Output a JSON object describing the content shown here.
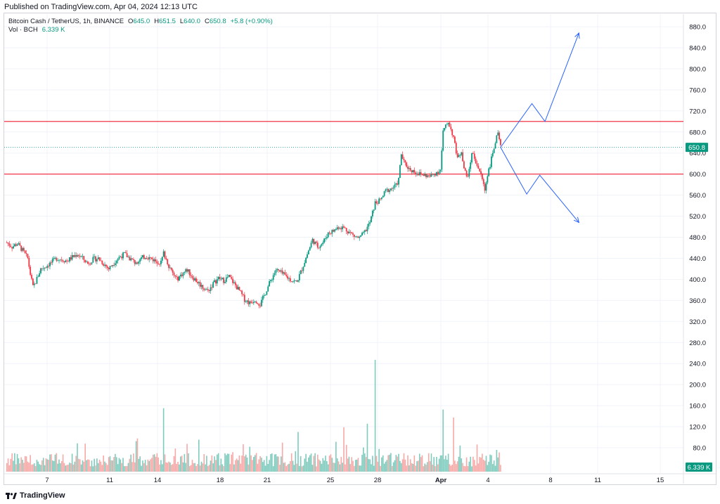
{
  "header": {
    "published": "Published on TradingView.com, Apr 04, 2024 12:13 UTC"
  },
  "legend": {
    "symbol": "Bitcoin Cash / TetherUS, 1h, BINANCE",
    "open_label": "O",
    "open": "645.0",
    "high_label": "H",
    "high": "651.5",
    "low_label": "L",
    "low": "640.0",
    "close_label": "C",
    "close": "650.8",
    "change": "+5.8 (+0.90%)",
    "vol_label": "Vol · BCH",
    "vol_value": "6.339 K"
  },
  "footer": {
    "brand": "TradingView"
  },
  "colors": {
    "up": "#089981",
    "down": "#f23645",
    "up_vol": "#7fcbbe",
    "down_vol": "#f7a9a7",
    "resistance": "#f23645",
    "projection": "#2962ff",
    "grid": "#f0f3fa",
    "price_tag": "#089981"
  },
  "chart_data": {
    "type": "candlestick",
    "x_axis_labels": [
      "7",
      "11",
      "14",
      "18",
      "21",
      "25",
      "28",
      "Apr",
      "4",
      "8",
      "11",
      "15"
    ],
    "y_axis_labels": [
      "880.0",
      "840.0",
      "800.0",
      "760.0",
      "720.0",
      "680.0",
      "640.0",
      "600.0",
      "560.0",
      "520.0",
      "480.0",
      "440.0",
      "400.0",
      "360.0",
      "320.0",
      "280.0",
      "240.0",
      "200.0",
      "160.0",
      "120.0",
      "80.0"
    ],
    "ylim": [
      280,
      895
    ],
    "last_price": 650.8,
    "last_price_label": "650.8",
    "volume_label": "6.339 K",
    "horizontal_levels": [
      700,
      600
    ],
    "close_path": [
      {
        "x": 1,
        "y": 470
      },
      {
        "x": 3,
        "y": 462
      },
      {
        "x": 5,
        "y": 468
      },
      {
        "x": 7,
        "y": 455
      },
      {
        "x": 9,
        "y": 440
      },
      {
        "x": 10,
        "y": 410
      },
      {
        "x": 11,
        "y": 385
      },
      {
        "x": 12,
        "y": 395
      },
      {
        "x": 14,
        "y": 420
      },
      {
        "x": 16,
        "y": 425
      },
      {
        "x": 18,
        "y": 432
      },
      {
        "x": 20,
        "y": 440
      },
      {
        "x": 22,
        "y": 438
      },
      {
        "x": 24,
        "y": 435
      },
      {
        "x": 26,
        "y": 442
      },
      {
        "x": 28,
        "y": 448
      },
      {
        "x": 30,
        "y": 440
      },
      {
        "x": 32,
        "y": 430
      },
      {
        "x": 34,
        "y": 438
      },
      {
        "x": 36,
        "y": 440
      },
      {
        "x": 38,
        "y": 430
      },
      {
        "x": 40,
        "y": 420
      },
      {
        "x": 42,
        "y": 432
      },
      {
        "x": 44,
        "y": 442
      },
      {
        "x": 46,
        "y": 448
      },
      {
        "x": 48,
        "y": 440
      },
      {
        "x": 50,
        "y": 432
      },
      {
        "x": 52,
        "y": 438
      },
      {
        "x": 54,
        "y": 444
      },
      {
        "x": 56,
        "y": 440
      },
      {
        "x": 58,
        "y": 435
      },
      {
        "x": 60,
        "y": 432
      },
      {
        "x": 61,
        "y": 450
      },
      {
        "x": 62,
        "y": 438
      },
      {
        "x": 64,
        "y": 415
      },
      {
        "x": 66,
        "y": 400
      },
      {
        "x": 68,
        "y": 410
      },
      {
        "x": 70,
        "y": 418
      },
      {
        "x": 72,
        "y": 405
      },
      {
        "x": 74,
        "y": 395
      },
      {
        "x": 76,
        "y": 385
      },
      {
        "x": 78,
        "y": 378
      },
      {
        "x": 80,
        "y": 392
      },
      {
        "x": 82,
        "y": 402
      },
      {
        "x": 84,
        "y": 398
      },
      {
        "x": 86,
        "y": 405
      },
      {
        "x": 88,
        "y": 392
      },
      {
        "x": 90,
        "y": 378
      },
      {
        "x": 92,
        "y": 362
      },
      {
        "x": 94,
        "y": 355
      },
      {
        "x": 96,
        "y": 362
      },
      {
        "x": 98,
        "y": 352
      },
      {
        "x": 100,
        "y": 375
      },
      {
        "x": 102,
        "y": 398
      },
      {
        "x": 104,
        "y": 418
      },
      {
        "x": 106,
        "y": 412
      },
      {
        "x": 108,
        "y": 405
      },
      {
        "x": 110,
        "y": 398
      },
      {
        "x": 112,
        "y": 395
      },
      {
        "x": 114,
        "y": 420
      },
      {
        "x": 116,
        "y": 448
      },
      {
        "x": 118,
        "y": 475
      },
      {
        "x": 120,
        "y": 462
      },
      {
        "x": 122,
        "y": 470
      },
      {
        "x": 124,
        "y": 488
      },
      {
        "x": 126,
        "y": 492
      },
      {
        "x": 128,
        "y": 500
      },
      {
        "x": 130,
        "y": 498
      },
      {
        "x": 132,
        "y": 490
      },
      {
        "x": 134,
        "y": 482
      },
      {
        "x": 136,
        "y": 478
      },
      {
        "x": 138,
        "y": 490
      },
      {
        "x": 140,
        "y": 508
      },
      {
        "x": 142,
        "y": 545
      },
      {
        "x": 144,
        "y": 550
      },
      {
        "x": 146,
        "y": 568
      },
      {
        "x": 148,
        "y": 572
      },
      {
        "x": 150,
        "y": 578
      },
      {
        "x": 151,
        "y": 590
      },
      {
        "x": 152,
        "y": 638
      },
      {
        "x": 153,
        "y": 622
      },
      {
        "x": 155,
        "y": 610
      },
      {
        "x": 157,
        "y": 605
      },
      {
        "x": 159,
        "y": 600
      },
      {
        "x": 161,
        "y": 598
      },
      {
        "x": 163,
        "y": 595
      },
      {
        "x": 165,
        "y": 602
      },
      {
        "x": 167,
        "y": 608
      },
      {
        "x": 168,
        "y": 680
      },
      {
        "x": 169,
        "y": 690
      },
      {
        "x": 170,
        "y": 700
      },
      {
        "x": 171,
        "y": 685
      },
      {
        "x": 172,
        "y": 670
      },
      {
        "x": 173,
        "y": 640
      },
      {
        "x": 174,
        "y": 632
      },
      {
        "x": 175,
        "y": 645
      },
      {
        "x": 176,
        "y": 612
      },
      {
        "x": 177,
        "y": 595
      },
      {
        "x": 178,
        "y": 605
      },
      {
        "x": 179,
        "y": 642
      },
      {
        "x": 180,
        "y": 630
      },
      {
        "x": 181,
        "y": 618
      },
      {
        "x": 182,
        "y": 605
      },
      {
        "x": 183,
        "y": 590
      },
      {
        "x": 184,
        "y": 570
      },
      {
        "x": 185,
        "y": 600
      },
      {
        "x": 186,
        "y": 618
      },
      {
        "x": 187,
        "y": 640
      },
      {
        "x": 188,
        "y": 662
      },
      {
        "x": 189,
        "y": 675
      },
      {
        "x": 190,
        "y": 650.8
      }
    ],
    "projection_up": [
      {
        "x": 190,
        "y": 650.8
      },
      {
        "x": 202,
        "y": 734
      },
      {
        "x": 207,
        "y": 700
      },
      {
        "x": 220,
        "y": 868
      }
    ],
    "projection_down": [
      {
        "x": 190,
        "y": 650.8
      },
      {
        "x": 200,
        "y": 562
      },
      {
        "x": 205,
        "y": 598
      },
      {
        "x": 220,
        "y": 508
      }
    ],
    "x_domain": [
      0,
      260
    ],
    "volume_ylim": [
      0,
      270
    ],
    "volume_spikes": [
      {
        "x": 61,
        "v": 143
      },
      {
        "x": 130,
        "v": 100
      },
      {
        "x": 139,
        "v": 108
      },
      {
        "x": 142,
        "v": 252
      },
      {
        "x": 168,
        "v": 140
      },
      {
        "x": 172,
        "v": 122
      }
    ]
  }
}
